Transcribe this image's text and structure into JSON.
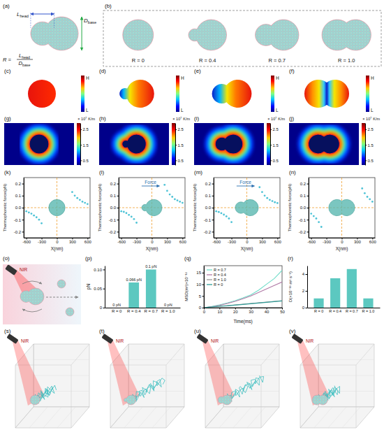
{
  "diagram": {
    "a": {
      "label": "(a)",
      "head": {
        "symbol": "L",
        "subscript": "head"
      },
      "base": {
        "symbol": "D",
        "subscript": "base"
      },
      "formula": "R ="
    },
    "b": {
      "label": "(b)",
      "shapes": [
        {
          "text": "R = 0",
          "R": 0
        },
        {
          "text": "R = 0.4",
          "R": 0.4
        },
        {
          "text": "R = 0.7",
          "R": 0.7
        },
        {
          "text": "R = 1.0",
          "R": 1.0
        }
      ]
    },
    "temperature_maps": {
      "labels": [
        "(c)",
        "(d)",
        "(e)",
        "(f)"
      ],
      "colorbar": {
        "high": "H",
        "low": "L"
      }
    },
    "gradient_maps": {
      "labels": [
        "(g)",
        "(h)",
        "(i)",
        "(j)"
      ],
      "colorbar": {
        "range": [
          0.2,
          2.9
        ],
        "ticks": [
          0.5,
          1.5,
          2.5
        ],
        "multiplier": "× 10⁷",
        "unit": "K/m"
      }
    },
    "o": {
      "label": "(o)",
      "light": "NIR"
    },
    "trajectories": {
      "labels": [
        "(s)",
        "(t)",
        "(u)",
        "(v)"
      ],
      "light": "NIR"
    }
  },
  "chart_data": [
    {
      "panel_label": "(k)",
      "type": "scatter",
      "x": [
        -600,
        -550,
        -500,
        -450,
        -400,
        -350,
        -300,
        300,
        350,
        400,
        450,
        500,
        550,
        600
      ],
      "values": [
        -0.03,
        -0.04,
        -0.05,
        -0.065,
        -0.08,
        -0.1,
        -0.13,
        0.13,
        0.1,
        0.08,
        0.065,
        0.05,
        0.04,
        0.03
      ],
      "xlim": [
        -650,
        650
      ],
      "xticks": [
        -600,
        -300,
        0,
        300,
        600
      ],
      "ylim": [
        -0.25,
        0.25
      ],
      "yticks": [
        -0.2,
        -0.1,
        {
          "value": 0,
          "label": "0.0"
        },
        0.1,
        0.2
      ],
      "x_label": "X(nm)",
      "y_label": "Thermophoretic force(pN)",
      "color": "#4fc3d6",
      "marker": "circle"
    },
    {
      "panel_label": "(l)",
      "type": "scatter",
      "x": [
        -600,
        -550,
        -500,
        -450,
        -400,
        -350,
        -300,
        250,
        300,
        350,
        400,
        450,
        500,
        550,
        600
      ],
      "values": [
        -0.03,
        -0.035,
        -0.045,
        -0.06,
        -0.075,
        -0.095,
        -0.125,
        0.19,
        0.14,
        0.11,
        0.09,
        0.07,
        0.06,
        0.05,
        0.04
      ],
      "xlim": [
        -650,
        650
      ],
      "xticks": [
        -600,
        -300,
        0,
        300,
        600
      ],
      "ylim": [
        -0.25,
        0.25
      ],
      "yticks": [
        -0.2,
        -0.1,
        {
          "value": 0,
          "label": "0.0"
        },
        0.1,
        0.2
      ],
      "x_label": "X(nm)",
      "y_label": "Thermophoretic force(pN)",
      "color": "#4fc3d6",
      "marker": "circle",
      "annotation": "Force"
    },
    {
      "panel_label": "(m)",
      "type": "scatter",
      "x": [
        -600,
        -550,
        -500,
        -450,
        -400,
        -350,
        -300,
        250,
        300,
        350,
        400,
        450,
        500,
        550,
        600
      ],
      "values": [
        -0.03,
        -0.036,
        -0.046,
        -0.058,
        -0.072,
        -0.09,
        -0.12,
        0.17,
        0.13,
        0.1,
        0.08,
        0.065,
        0.055,
        0.045,
        0.038
      ],
      "xlim": [
        -650,
        650
      ],
      "xticks": [
        -600,
        -300,
        0,
        300,
        600
      ],
      "ylim": [
        -0.25,
        0.25
      ],
      "yticks": [
        -0.2,
        -0.1,
        {
          "value": 0,
          "label": "0.0"
        },
        0.1,
        0.2
      ],
      "x_label": "X(nm)",
      "y_label": "Thermophoretic force(pN)",
      "color": "#4fc3d6",
      "marker": "circle",
      "annotation": "Force"
    },
    {
      "panel_label": "(n)",
      "type": "scatter",
      "x": [
        -600,
        -550,
        -500,
        -450,
        -400,
        400,
        450,
        500,
        550,
        600
      ],
      "values": [
        -0.05,
        -0.07,
        -0.09,
        -0.12,
        -0.16,
        0.16,
        0.12,
        0.09,
        0.07,
        0.05
      ],
      "xlim": [
        -650,
        650
      ],
      "xticks": [
        -600,
        -300,
        0,
        300,
        600
      ],
      "ylim": [
        -0.25,
        0.25
      ],
      "yticks": [
        -0.2,
        -0.1,
        {
          "value": 0,
          "label": "0.0"
        },
        0.1,
        0.2
      ],
      "x_label": "X(nm)",
      "y_label": "Thermophoretic force(pN)",
      "color": "#4fc3d6",
      "marker": "circle"
    },
    {
      "panel_label": "(p)",
      "type": "bar",
      "categories": [
        "R = 0",
        "R = 0.4",
        "R = 0.7",
        "R = 1.0"
      ],
      "values": [
        0,
        0.066,
        0.1,
        0
      ],
      "value_labels": [
        "0 pN",
        "0.066 pN",
        "0.1 pN",
        "0 pN"
      ],
      "data_labels": true,
      "ylim": [
        0,
        0.11
      ],
      "yticks": [
        0,
        0.05,
        {
          "value": 0.1,
          "label": "0.10"
        }
      ],
      "y_label": "pN",
      "color": "#5cc8c0"
    },
    {
      "panel_label": "(q)",
      "type": "line",
      "x": [
        0,
        5,
        10,
        15,
        20,
        25,
        30,
        35,
        40,
        45,
        50
      ],
      "series": [
        {
          "name": "R = 0.7",
          "color": "#6fdcc8",
          "values": [
            0,
            0.5,
            1.2,
            2,
            3,
            4.2,
            5.5,
            7.5,
            10,
            12.5,
            16
          ]
        },
        {
          "name": "R = 0.4",
          "color": "#b07aa6",
          "values": [
            0,
            0.4,
            1,
            1.8,
            2.7,
            3.8,
            5,
            6.5,
            8,
            9.5,
            11
          ]
        },
        {
          "name": "R = 1.0",
          "color": "#9a9a9a",
          "values": [
            0,
            0.3,
            0.6,
            0.9,
            1.2,
            1.5,
            1.8,
            2.1,
            2.4,
            2.7,
            3
          ]
        },
        {
          "name": "R = 0",
          "color": "#2f9c98",
          "values": [
            0,
            0.3,
            0.6,
            0.8,
            1.1,
            1.4,
            1.7,
            2,
            2.3,
            2.6,
            2.9
          ]
        }
      ],
      "xlim": [
        0,
        50
      ],
      "xticks": [
        0,
        10,
        20,
        30,
        40,
        50
      ],
      "ylim": [
        0,
        18
      ],
      "yticks": [
        0,
        5,
        10,
        15
      ],
      "x_label": "Time(ms)",
      "y_label": "MSD(m²)×10⁻¹²",
      "legend": "top-left"
    },
    {
      "panel_label": "(r)",
      "type": "bar",
      "categories": [
        "R = 0",
        "R = 0.4",
        "R = 0.7",
        "R = 1.0"
      ],
      "values": [
        1.1,
        3.5,
        4.6,
        1.1
      ],
      "ylim": [
        0,
        5
      ],
      "yticks": [
        0,
        2,
        4
      ],
      "y_label": "D(×10⁻¹³ m² s⁻¹)",
      "color": "#5cc8c0"
    }
  ]
}
